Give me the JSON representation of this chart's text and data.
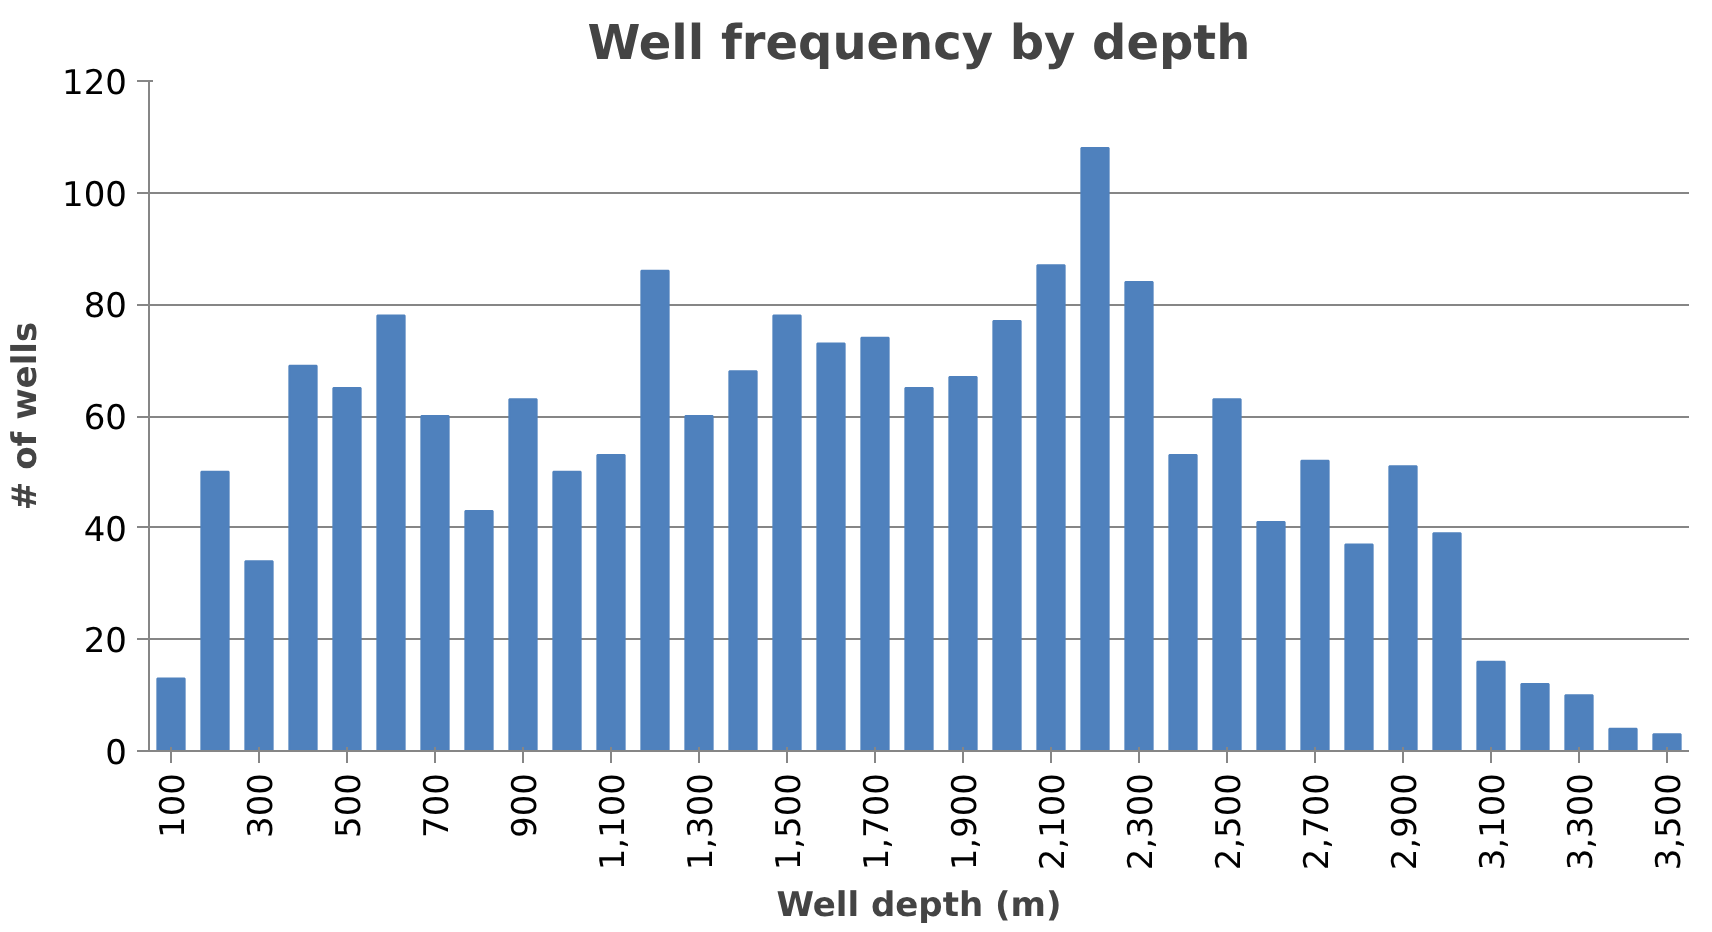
{
  "chart_data": {
    "type": "bar",
    "title": "Well frequency by depth",
    "xlabel": "Well depth (m)",
    "ylabel": "# of wells",
    "categories": [
      "100",
      null,
      "300",
      null,
      "500",
      null,
      "700",
      null,
      "900",
      null,
      "1,100",
      null,
      "1,300",
      null,
      "1,500",
      null,
      "1,700",
      null,
      "1,900",
      null,
      "2,100",
      null,
      "2,300",
      null,
      "2,500",
      null,
      "2,700",
      null,
      "2,900",
      null,
      "3,100",
      null,
      "3,300",
      null,
      "3,500"
    ],
    "series": [
      {
        "color": "#4f81bd",
        "values": [
          13,
          50,
          34,
          69,
          65,
          78,
          60,
          43,
          63,
          50,
          53,
          86,
          60,
          68,
          78,
          73,
          74,
          65,
          67,
          77,
          87,
          108,
          84,
          53,
          63,
          41,
          52,
          37,
          51,
          39,
          16,
          12,
          10,
          4,
          3
        ]
      }
    ],
    "ylim": [
      0,
      120
    ],
    "yticks": [
      0,
      20,
      40,
      60,
      80,
      100,
      120
    ],
    "grid": "y"
  }
}
